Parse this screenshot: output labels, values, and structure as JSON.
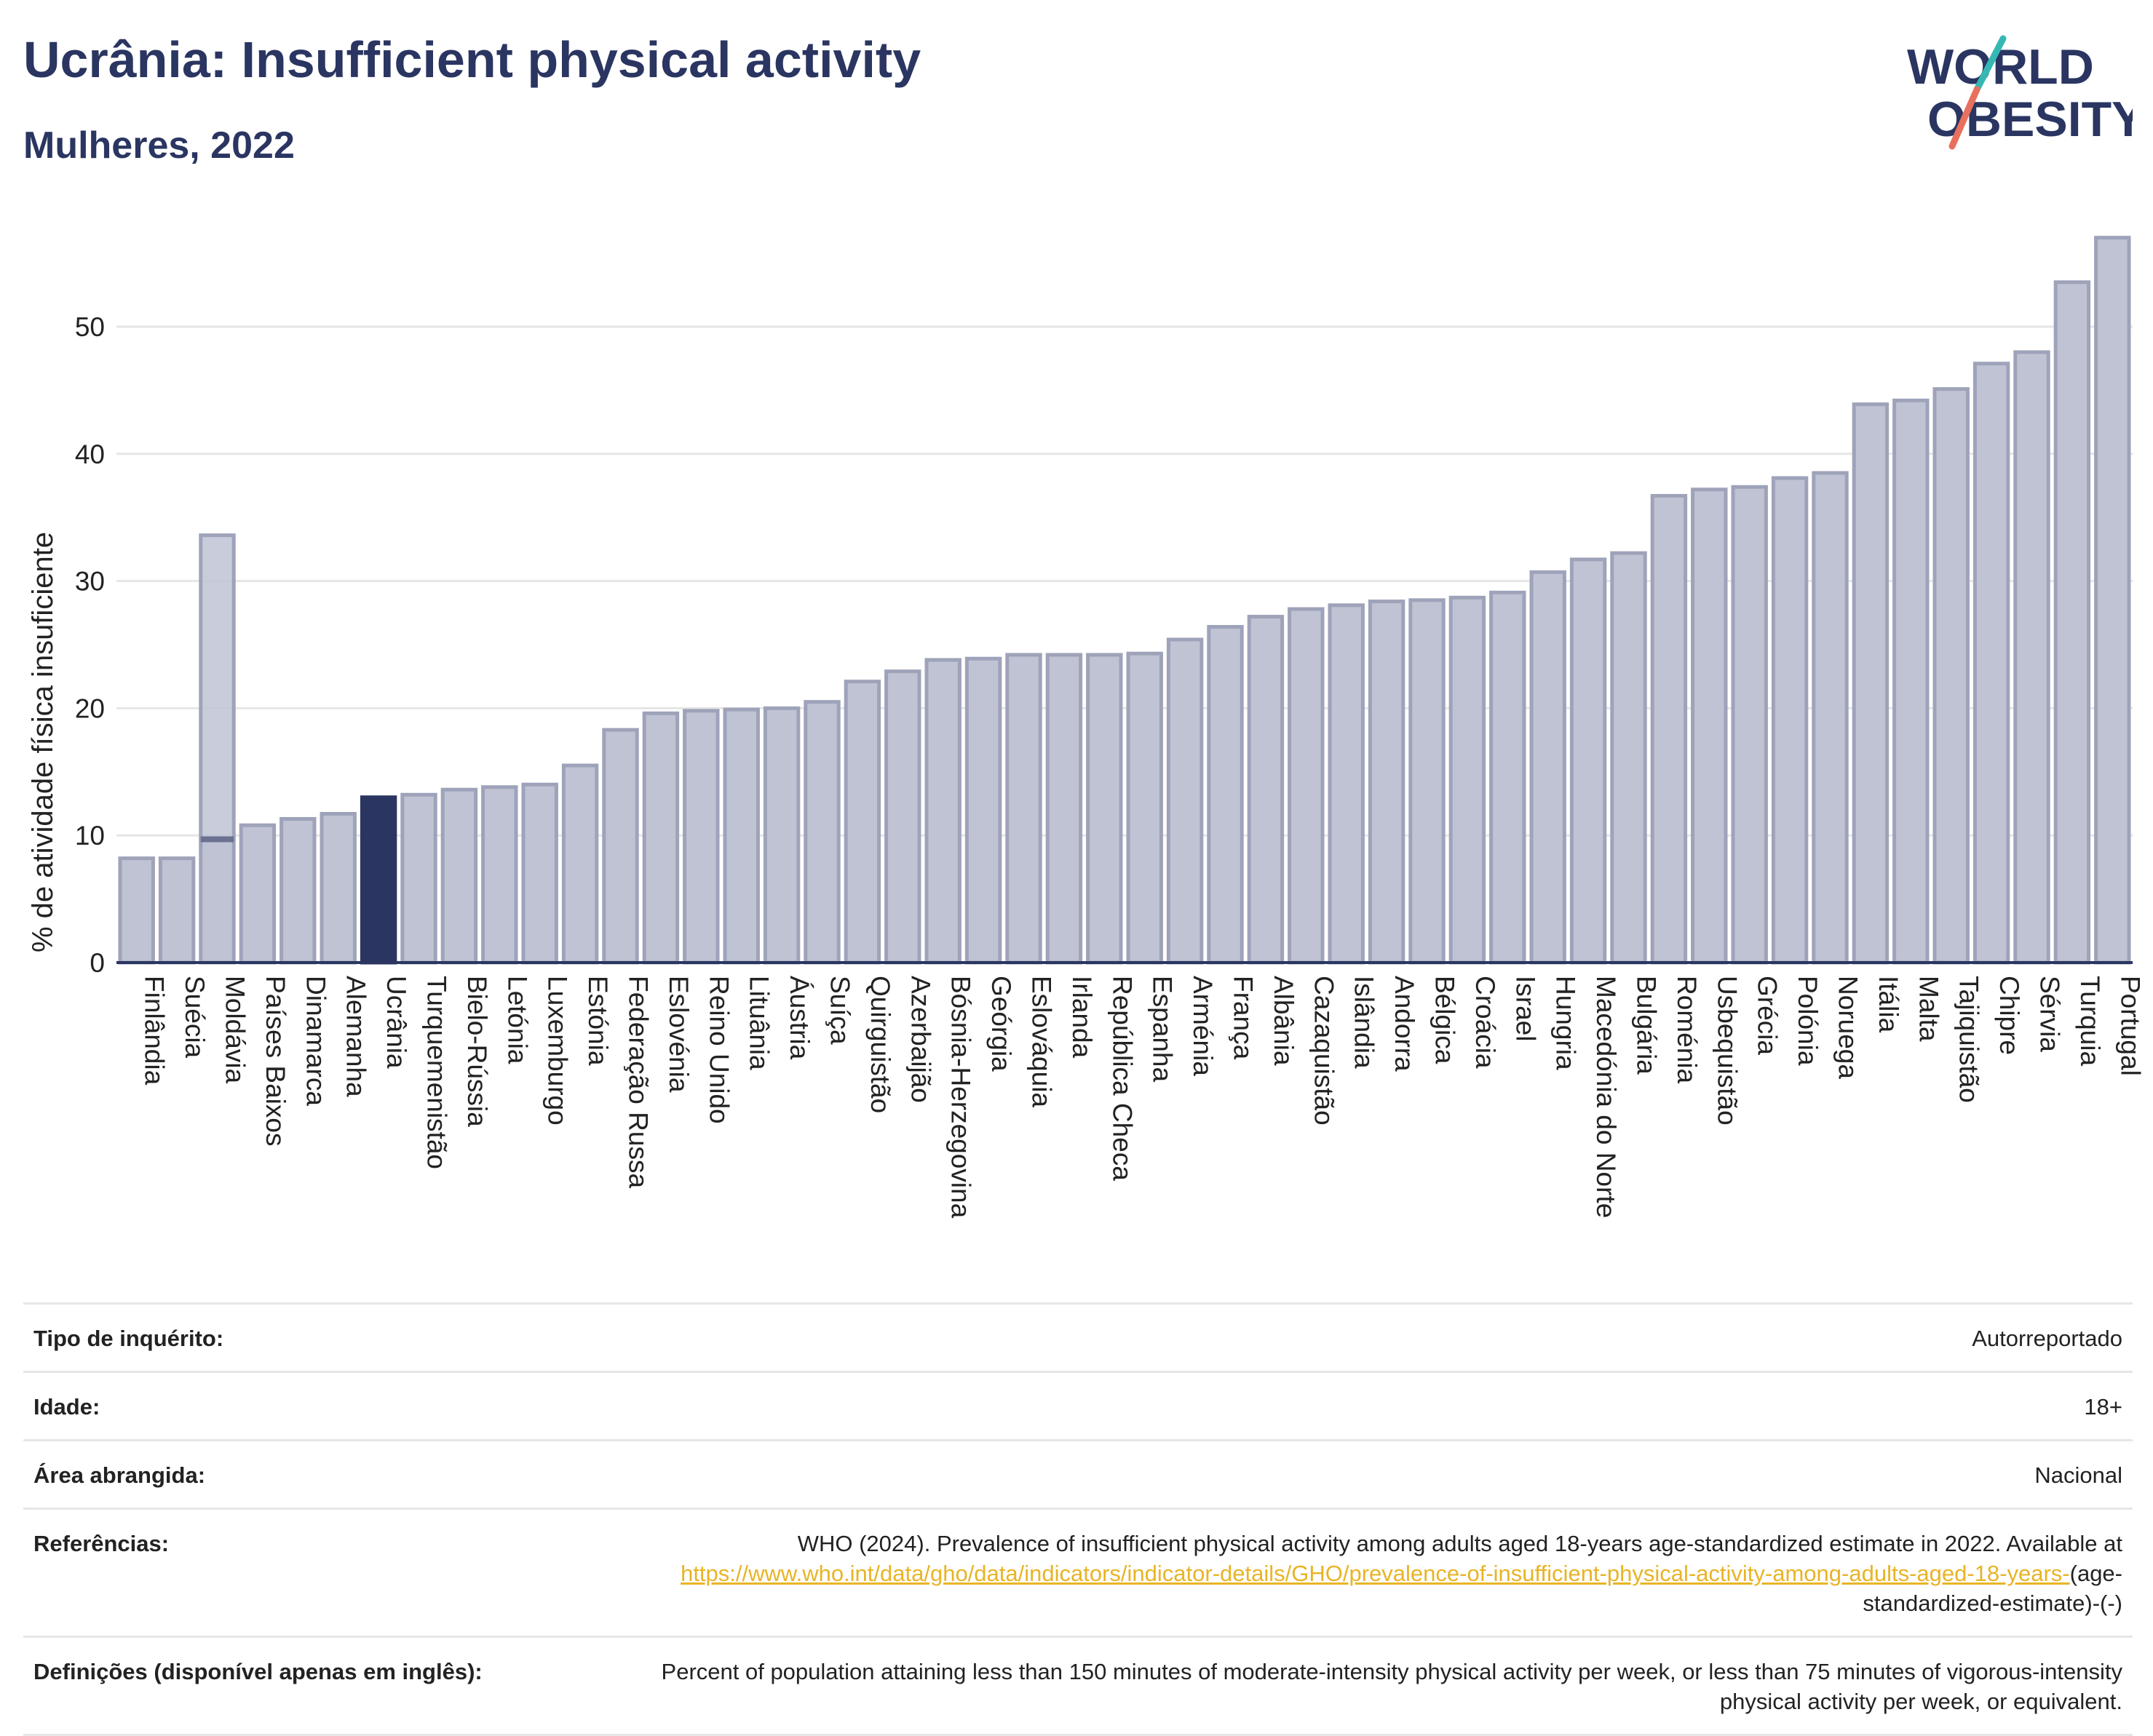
{
  "header": {
    "title": "Ucrânia: Insufficient physical activity",
    "subtitle": "Mulheres, 2022"
  },
  "logo": {
    "line1": "WORLD",
    "line2": "OBESITY",
    "colors": {
      "navy": "#2a3561",
      "teal": "#35b8b3",
      "coral": "#e8705e"
    }
  },
  "colors": {
    "bar_fill": "#bfc3d3",
    "bar_stroke": "#9ea3ba",
    "highlight": "#2a3561",
    "axis": "#2a3561",
    "grid": "#e6e6e6",
    "link": "#e8b426"
  },
  "chart_data": {
    "type": "bar",
    "title": "",
    "xlabel": "",
    "ylabel": "% de atividade física insuficiente",
    "ylim": [
      0,
      60
    ],
    "yticks": [
      0,
      10,
      20,
      30,
      40,
      50
    ],
    "grid": true,
    "highlight": "Ucrânia",
    "categories": [
      "Finlândia",
      "Suécia",
      "Moldávia",
      "Países Baixos",
      "Dinamarca",
      "Alemanha",
      "Ucrânia",
      "Turquemenistão",
      "Bielo-Rússia",
      "Letónia",
      "Luxemburgo",
      "Estónia",
      "Federação Russa",
      "Eslovénia",
      "Reino Unido",
      "Lituânia",
      "Áustria",
      "Suíça",
      "Quirguistão",
      "Azerbaijão",
      "Bósnia-Herzegovina",
      "Geórgia",
      "Eslováquia",
      "Irlanda",
      "República Checa",
      "Espanha",
      "Arménia",
      "França",
      "Albânia",
      "Cazaquistão",
      "Islândia",
      "Andorra",
      "Bélgica",
      "Croácia",
      "Israel",
      "Hungria",
      "Macedónia do Norte",
      "Bulgária",
      "Roménia",
      "Usbequistão",
      "Grécia",
      "Polónia",
      "Noruega",
      "Itália",
      "Malta",
      "Tajiquistão",
      "Chipre",
      "Sérvia",
      "Turquia",
      "Portugal"
    ],
    "values": [
      8.2,
      8.2,
      9.7,
      10.8,
      11.3,
      11.7,
      13.0,
      13.2,
      13.6,
      13.8,
      14.0,
      15.5,
      18.3,
      19.6,
      19.8,
      19.9,
      20.0,
      20.5,
      22.1,
      22.9,
      23.8,
      23.9,
      24.2,
      24.2,
      24.2,
      24.3,
      25.4,
      26.4,
      27.2,
      27.8,
      28.1,
      28.4,
      28.5,
      28.7,
      29.1,
      30.7,
      31.7,
      32.2,
      36.7,
      37.2,
      37.4,
      38.1,
      38.5,
      43.9,
      44.2,
      45.1,
      47.1,
      48.0,
      53.5,
      57.0
    ],
    "range_overlay": {
      "category": "Moldávia",
      "low": 9.7,
      "high": 33.6
    }
  },
  "info_table": {
    "survey_label": "Tipo de inquérito:",
    "survey_value": "Autorreportado",
    "age_label": "Idade:",
    "age_value": "18+",
    "area_label": "Área abrangida:",
    "area_value": "Nacional",
    "ref_label": "Referências:",
    "ref_text": "WHO (2024). Prevalence of insufficient physical activity among adults aged 18-years age-standardized estimate in 2022. Available at",
    "ref_link": "https://www.who.int/data/gho/data/indicators/indicator-details/GHO/prevalence-of-insufficient-physical-activity-among-adults-aged-18-years-",
    "ref_suffix": "(age-standardized-estimate)-(-)",
    "def_label": "Definições (disponível apenas em inglês):",
    "def_text": "Percent of population attaining less than 150 minutes of moderate-intensity physical activity per week, or less than 75 minutes of vigorous-intensity physical activity per week, or equivalent."
  }
}
